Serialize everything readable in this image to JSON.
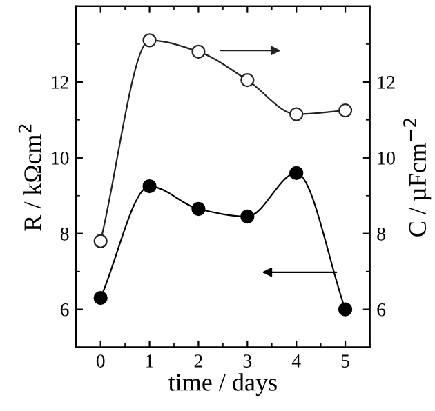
{
  "chart_data": {
    "type": "line",
    "xlabel": "time / days",
    "ylabel": "R / kΩcm$^{2}$",
    "y2label": "C / µFcm$^{−2}$",
    "x": [
      0,
      1,
      2,
      3,
      4,
      5
    ],
    "xlim": [
      -0.5,
      5.5
    ],
    "xticks": [
      0,
      1,
      2,
      3,
      4,
      5
    ],
    "ylim": [
      5,
      14
    ],
    "yticks": [
      6,
      8,
      10,
      12
    ],
    "y2lim": [
      5,
      14
    ],
    "y2ticks": [
      6,
      8,
      10,
      12
    ],
    "marker": "circle",
    "grid": false,
    "legend": false,
    "series": [
      {
        "color": "#000000",
        "values": [
          6.3,
          9.25,
          8.65,
          8.45,
          9.6,
          6.0
        ]
      },
      {
        "color": "#222222",
        "axis": "y2",
        "values": [
          7.8,
          13.1,
          12.8,
          12.05,
          11.15,
          11.25
        ]
      }
    ]
  }
}
